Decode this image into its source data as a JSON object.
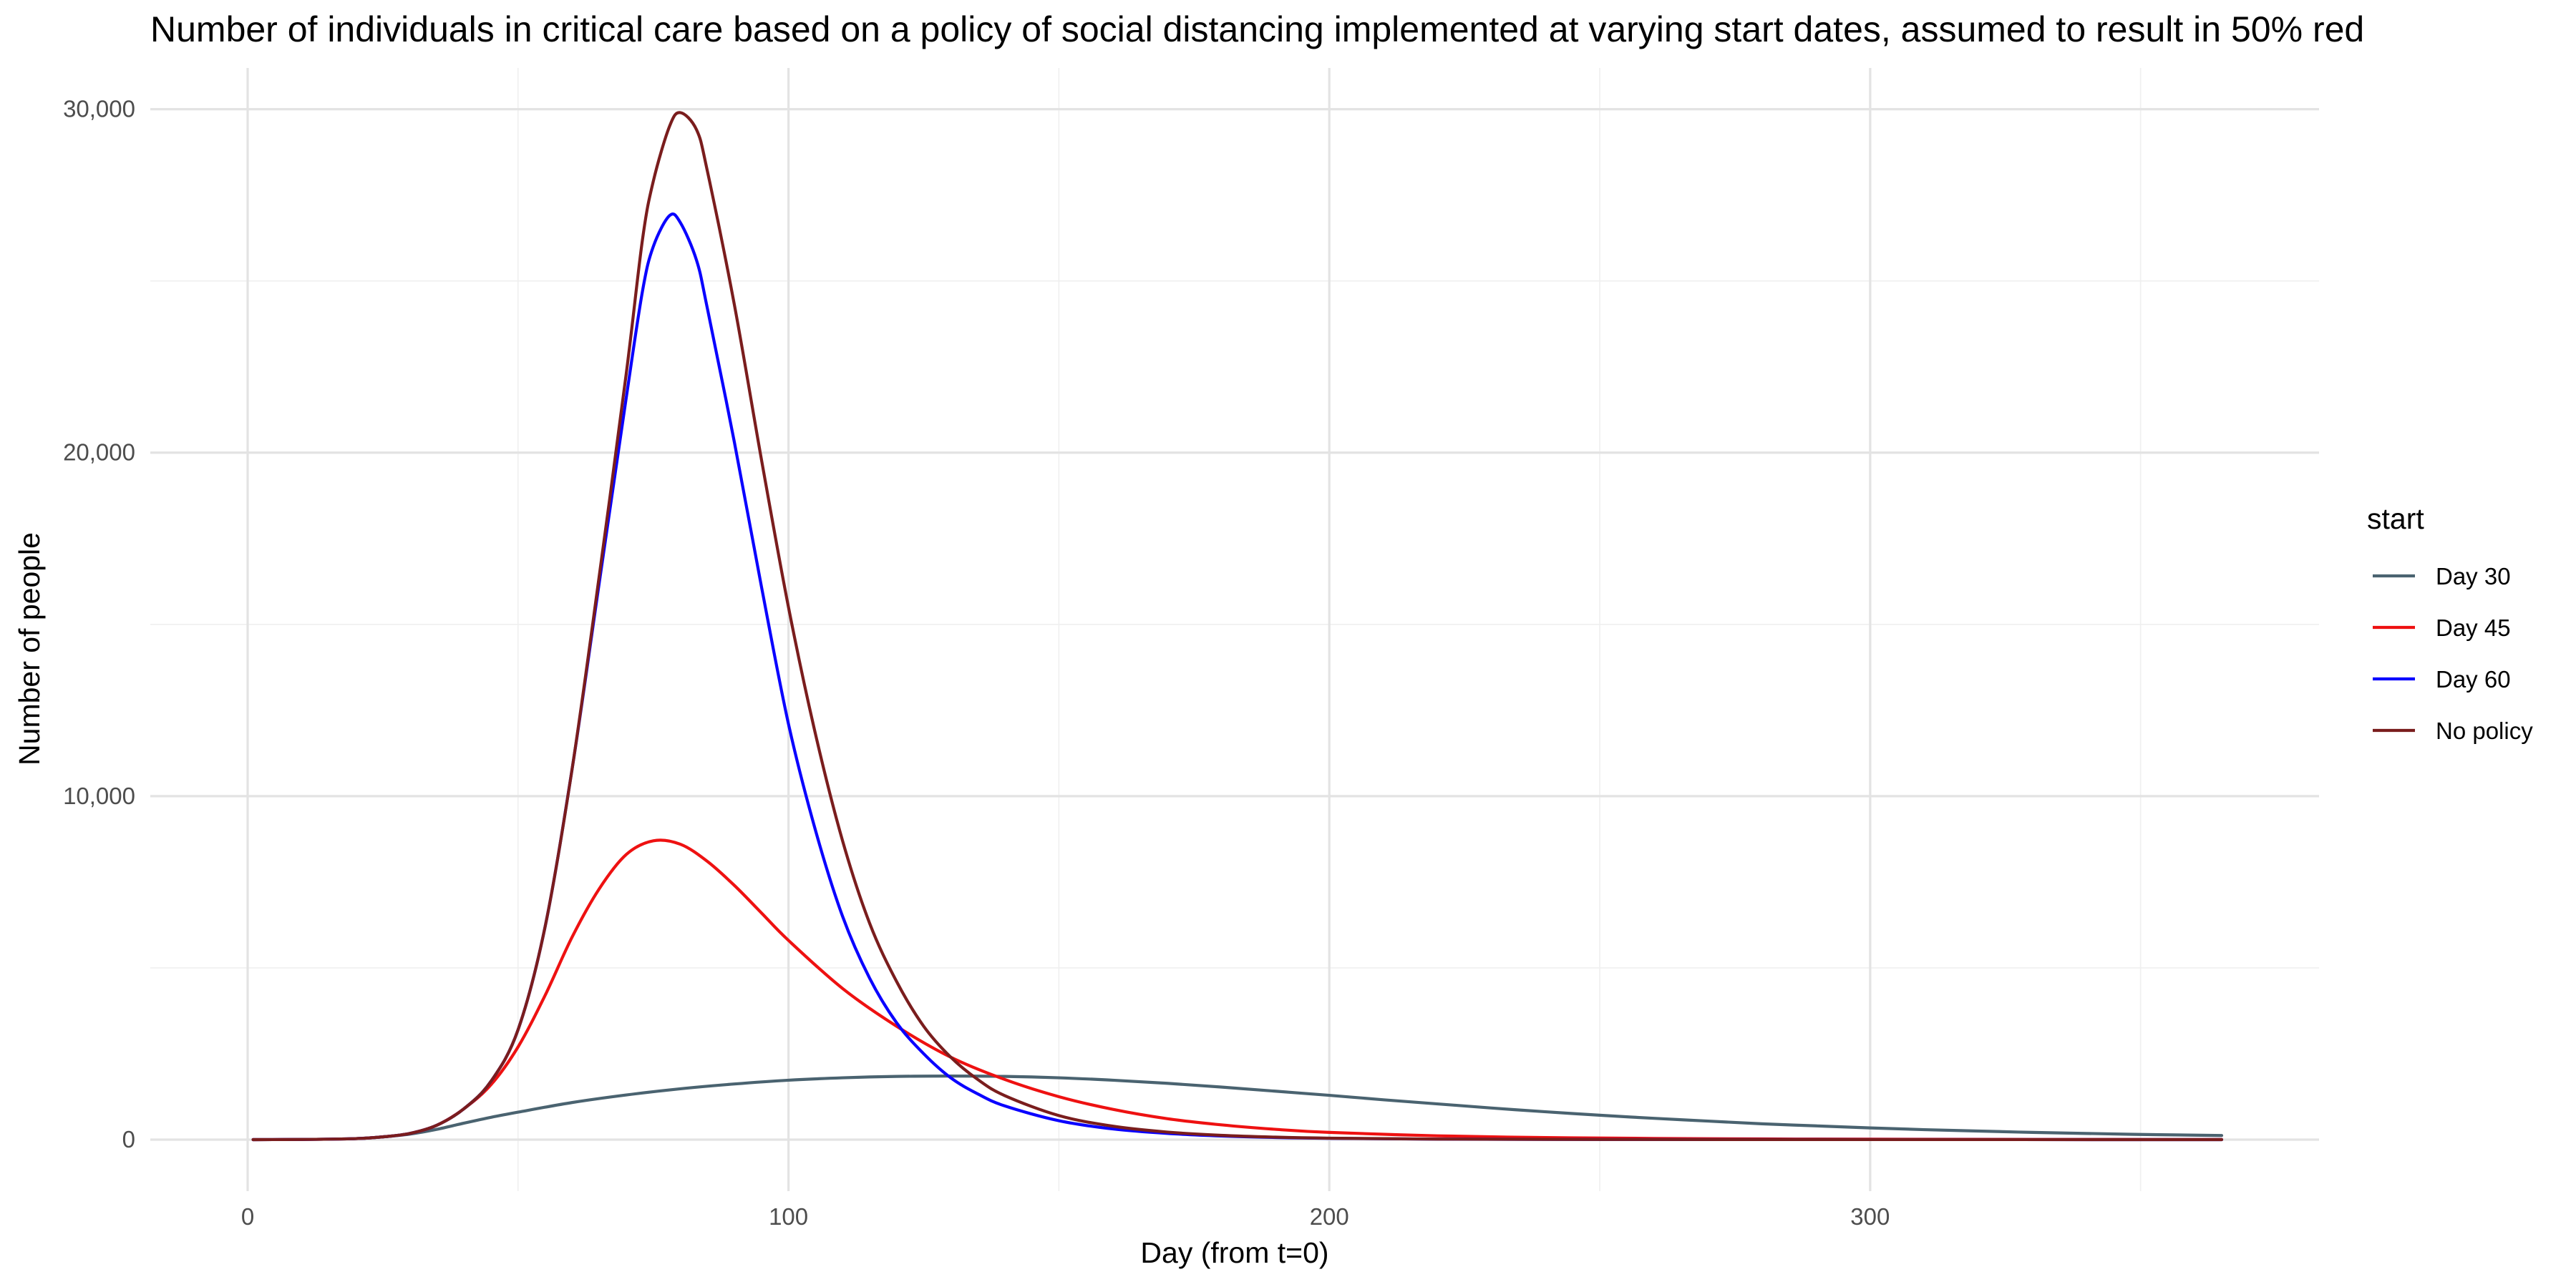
{
  "chart_data": {
    "type": "line",
    "title": "Number of individuals in critical care based on a policy of social distancing implemented at varying start dates, assumed to result in 50% red",
    "xlabel": "Day (from t=0)",
    "ylabel": "Number of people",
    "xlim": [
      -18,
      383
    ],
    "ylim": [
      -1500,
      31200
    ],
    "x_ticks": [
      0,
      100,
      200,
      300
    ],
    "x_tick_labels": [
      "0",
      "100",
      "200",
      "300"
    ],
    "x_minor_ticks": [
      50,
      150,
      250,
      350
    ],
    "y_ticks": [
      0,
      10000,
      20000,
      30000
    ],
    "y_tick_labels": [
      "0",
      "10,000",
      "20,000",
      "30,000"
    ],
    "y_minor_ticks": [
      5000,
      15000,
      25000
    ],
    "grid": true,
    "legend": {
      "title": "start",
      "position": "right"
    },
    "series": [
      {
        "name": "Day 30",
        "color": "#4a6370",
        "x": [
          1,
          10,
          20,
          25,
          30,
          35,
          40,
          45,
          50,
          60,
          70,
          80,
          90,
          100,
          110,
          120,
          130,
          140,
          150,
          160,
          170,
          180,
          190,
          200,
          210,
          220,
          230,
          240,
          250,
          260,
          270,
          280,
          290,
          300,
          310,
          320,
          330,
          340,
          350,
          360,
          365
        ],
        "y": [
          0,
          5,
          30,
          80,
          160,
          300,
          480,
          650,
          800,
          1080,
          1300,
          1480,
          1620,
          1730,
          1800,
          1840,
          1850,
          1840,
          1800,
          1730,
          1640,
          1530,
          1410,
          1290,
          1160,
          1040,
          920,
          810,
          710,
          620,
          540,
          460,
          400,
          340,
          290,
          250,
          210,
          180,
          150,
          130,
          120
        ]
      },
      {
        "name": "Day 45",
        "color": "#ee1111",
        "x": [
          1,
          10,
          20,
          25,
          30,
          35,
          40,
          45,
          50,
          55,
          60,
          65,
          70,
          75,
          80,
          85,
          90,
          95,
          100,
          110,
          120,
          130,
          140,
          150,
          160,
          170,
          180,
          190,
          200,
          220,
          240,
          260,
          280,
          300,
          330,
          365
        ],
        "y": [
          0,
          5,
          30,
          80,
          180,
          420,
          900,
          1600,
          2700,
          4200,
          5900,
          7300,
          8300,
          8700,
          8600,
          8100,
          7400,
          6600,
          5800,
          4400,
          3300,
          2400,
          1750,
          1250,
          880,
          610,
          430,
          300,
          210,
          110,
          60,
          35,
          20,
          12,
          6,
          3
        ]
      },
      {
        "name": "Day 60",
        "color": "#0a00ff",
        "x": [
          1,
          10,
          20,
          25,
          30,
          35,
          40,
          45,
          50,
          55,
          60,
          65,
          70,
          73,
          75,
          78,
          80,
          83,
          85,
          90,
          95,
          100,
          105,
          110,
          115,
          120,
          125,
          130,
          135,
          140,
          150,
          160,
          170,
          180,
          190,
          200,
          220,
          250,
          300,
          365
        ],
        "y": [
          0,
          5,
          30,
          80,
          180,
          420,
          900,
          1700,
          3200,
          6200,
          10800,
          16200,
          21600,
          24700,
          26000,
          26900,
          26700,
          25600,
          24200,
          20300,
          16100,
          12100,
          9000,
          6500,
          4700,
          3400,
          2500,
          1800,
          1330,
          980,
          550,
          310,
          180,
          105,
          62,
          37,
          14,
          4,
          1,
          0
        ]
      },
      {
        "name": "No policy",
        "color": "#7a1d1d",
        "x": [
          1,
          10,
          20,
          25,
          30,
          35,
          40,
          45,
          50,
          55,
          60,
          65,
          70,
          73,
          75,
          78,
          80,
          83,
          85,
          90,
          95,
          100,
          105,
          110,
          115,
          120,
          125,
          130,
          135,
          140,
          150,
          160,
          170,
          180,
          190,
          200,
          220,
          250,
          300,
          365
        ],
        "y": [
          0,
          5,
          30,
          80,
          180,
          420,
          900,
          1700,
          3200,
          6200,
          10800,
          16400,
          22300,
          26200,
          27900,
          29500,
          29900,
          29400,
          28200,
          24300,
          19800,
          15500,
          11800,
          8700,
          6300,
          4600,
          3300,
          2400,
          1750,
          1280,
          700,
          390,
          220,
          125,
          72,
          42,
          15,
          4,
          1,
          0
        ]
      }
    ]
  }
}
